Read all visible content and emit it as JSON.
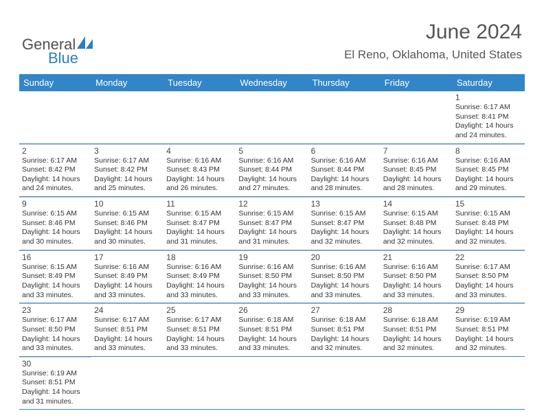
{
  "logo": {
    "part1": "General",
    "part2": "Blue"
  },
  "title": "June 2024",
  "location": "El Reno, Oklahoma, United States",
  "colors": {
    "header_bg": "#3286c7",
    "header_text": "#ffffff",
    "row_border": "#3286c7",
    "cell_border": "#cccccc",
    "body_text": "#333333",
    "title_color": "#555555",
    "logo_gray": "#505050",
    "logo_blue": "#2b7fc4"
  },
  "dayNames": [
    "Sunday",
    "Monday",
    "Tuesday",
    "Wednesday",
    "Thursday",
    "Friday",
    "Saturday"
  ],
  "layout": {
    "firstDayOffset": 6,
    "daysInMonth": 30,
    "weeks": 6
  },
  "days": {
    "1": {
      "sunrise": "6:17 AM",
      "sunset": "8:41 PM",
      "daylight": "14 hours and 24 minutes."
    },
    "2": {
      "sunrise": "6:17 AM",
      "sunset": "8:42 PM",
      "daylight": "14 hours and 24 minutes."
    },
    "3": {
      "sunrise": "6:17 AM",
      "sunset": "8:42 PM",
      "daylight": "14 hours and 25 minutes."
    },
    "4": {
      "sunrise": "6:16 AM",
      "sunset": "8:43 PM",
      "daylight": "14 hours and 26 minutes."
    },
    "5": {
      "sunrise": "6:16 AM",
      "sunset": "8:44 PM",
      "daylight": "14 hours and 27 minutes."
    },
    "6": {
      "sunrise": "6:16 AM",
      "sunset": "8:44 PM",
      "daylight": "14 hours and 28 minutes."
    },
    "7": {
      "sunrise": "6:16 AM",
      "sunset": "8:45 PM",
      "daylight": "14 hours and 28 minutes."
    },
    "8": {
      "sunrise": "6:16 AM",
      "sunset": "8:45 PM",
      "daylight": "14 hours and 29 minutes."
    },
    "9": {
      "sunrise": "6:15 AM",
      "sunset": "8:46 PM",
      "daylight": "14 hours and 30 minutes."
    },
    "10": {
      "sunrise": "6:15 AM",
      "sunset": "8:46 PM",
      "daylight": "14 hours and 30 minutes."
    },
    "11": {
      "sunrise": "6:15 AM",
      "sunset": "8:47 PM",
      "daylight": "14 hours and 31 minutes."
    },
    "12": {
      "sunrise": "6:15 AM",
      "sunset": "8:47 PM",
      "daylight": "14 hours and 31 minutes."
    },
    "13": {
      "sunrise": "6:15 AM",
      "sunset": "8:47 PM",
      "daylight": "14 hours and 32 minutes."
    },
    "14": {
      "sunrise": "6:15 AM",
      "sunset": "8:48 PM",
      "daylight": "14 hours and 32 minutes."
    },
    "15": {
      "sunrise": "6:15 AM",
      "sunset": "8:48 PM",
      "daylight": "14 hours and 32 minutes."
    },
    "16": {
      "sunrise": "6:15 AM",
      "sunset": "8:49 PM",
      "daylight": "14 hours and 33 minutes."
    },
    "17": {
      "sunrise": "6:16 AM",
      "sunset": "8:49 PM",
      "daylight": "14 hours and 33 minutes."
    },
    "18": {
      "sunrise": "6:16 AM",
      "sunset": "8:49 PM",
      "daylight": "14 hours and 33 minutes."
    },
    "19": {
      "sunrise": "6:16 AM",
      "sunset": "8:50 PM",
      "daylight": "14 hours and 33 minutes."
    },
    "20": {
      "sunrise": "6:16 AM",
      "sunset": "8:50 PM",
      "daylight": "14 hours and 33 minutes."
    },
    "21": {
      "sunrise": "6:16 AM",
      "sunset": "8:50 PM",
      "daylight": "14 hours and 33 minutes."
    },
    "22": {
      "sunrise": "6:17 AM",
      "sunset": "8:50 PM",
      "daylight": "14 hours and 33 minutes."
    },
    "23": {
      "sunrise": "6:17 AM",
      "sunset": "8:50 PM",
      "daylight": "14 hours and 33 minutes."
    },
    "24": {
      "sunrise": "6:17 AM",
      "sunset": "8:51 PM",
      "daylight": "14 hours and 33 minutes."
    },
    "25": {
      "sunrise": "6:17 AM",
      "sunset": "8:51 PM",
      "daylight": "14 hours and 33 minutes."
    },
    "26": {
      "sunrise": "6:18 AM",
      "sunset": "8:51 PM",
      "daylight": "14 hours and 33 minutes."
    },
    "27": {
      "sunrise": "6:18 AM",
      "sunset": "8:51 PM",
      "daylight": "14 hours and 32 minutes."
    },
    "28": {
      "sunrise": "6:18 AM",
      "sunset": "8:51 PM",
      "daylight": "14 hours and 32 minutes."
    },
    "29": {
      "sunrise": "6:19 AM",
      "sunset": "8:51 PM",
      "daylight": "14 hours and 32 minutes."
    },
    "30": {
      "sunrise": "6:19 AM",
      "sunset": "8:51 PM",
      "daylight": "14 hours and 31 minutes."
    }
  }
}
